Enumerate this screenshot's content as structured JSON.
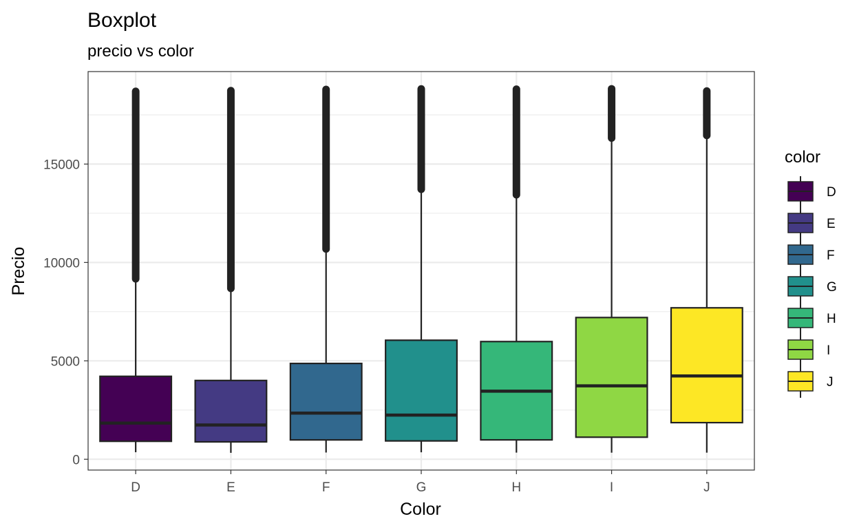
{
  "chart_data": {
    "type": "boxplot",
    "title": "Boxplot",
    "subtitle": "precio vs color",
    "xlabel": "Color",
    "ylabel": "Precio",
    "ylim": [
      -550,
      19700
    ],
    "yticks": [
      0,
      5000,
      10000,
      15000
    ],
    "ytick_labels": [
      "0",
      "5000",
      "10000",
      "15000"
    ],
    "grid": true,
    "legend": {
      "title": "color",
      "position": "right",
      "entries": [
        "D",
        "E",
        "F",
        "G",
        "H",
        "I",
        "J"
      ]
    },
    "categories": [
      "D",
      "E",
      "F",
      "G",
      "H",
      "I",
      "J"
    ],
    "colors": [
      "#440154",
      "#443A83",
      "#31688E",
      "#21908C",
      "#35B779",
      "#8FD744",
      "#FDE725"
    ],
    "boxes": [
      {
        "category": "D",
        "whisker_low": 357,
        "q1": 911,
        "median": 1838,
        "q3": 4214,
        "whisker_high": 9164,
        "outlier_low": 9170,
        "outlier_high": 18693
      },
      {
        "category": "E",
        "whisker_low": 326,
        "q1": 882,
        "median": 1739,
        "q3": 4003,
        "whisker_high": 8679,
        "outlier_low": 8684,
        "outlier_high": 18731
      },
      {
        "category": "F",
        "whisker_low": 342,
        "q1": 982,
        "median": 2344,
        "q3": 4868,
        "whisker_high": 10677,
        "outlier_low": 10685,
        "outlier_high": 18791
      },
      {
        "category": "G",
        "whisker_low": 354,
        "q1": 931,
        "median": 2242,
        "q3": 6048,
        "whisker_high": 13713,
        "outlier_low": 13720,
        "outlier_high": 18818
      },
      {
        "category": "H",
        "whisker_low": 337,
        "q1": 984,
        "median": 3460,
        "q3": 5980,
        "whisker_high": 13434,
        "outlier_low": 13440,
        "outlier_high": 18803
      },
      {
        "category": "I",
        "whisker_low": 334,
        "q1": 1120,
        "median": 3730,
        "q3": 7202,
        "whisker_high": 16315,
        "outlier_low": 16320,
        "outlier_high": 18823
      },
      {
        "category": "J",
        "whisker_low": 335,
        "q1": 1860,
        "median": 4234,
        "q3": 7695,
        "whisker_high": 16451,
        "outlier_low": 16455,
        "outlier_high": 18710
      }
    ]
  }
}
